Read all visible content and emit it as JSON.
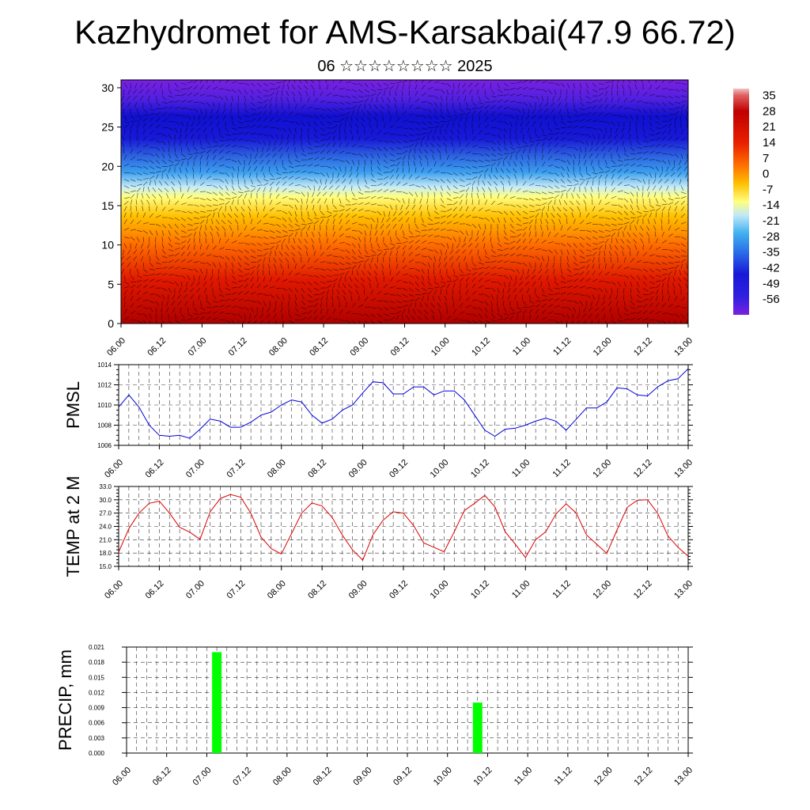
{
  "title": "Kazhydromet for AMS-Karsakbai(47.9 66.72)",
  "subtitle": "06 ☆☆☆☆☆☆☆☆ 2025",
  "chart_data": [
    {
      "type": "heatmap",
      "name": "cross-section",
      "y_ticks": [
        "0",
        "5",
        "10",
        "15",
        "20",
        "25",
        "30"
      ],
      "ylim": [
        0,
        31
      ],
      "x_ticks": [
        "06.00",
        "06.12",
        "07.00",
        "07.12",
        "08.00",
        "08.12",
        "09.00",
        "09.12",
        "10.00",
        "10.12",
        "11.00",
        "11.12",
        "12.00",
        "12.12",
        "13.00"
      ],
      "colorbar_labels": [
        "35",
        "28",
        "21",
        "14",
        "7",
        "0",
        "-7",
        "-14",
        "-21",
        "-28",
        "-35",
        "-42",
        "-49",
        "-56"
      ],
      "colorbar_range": [
        -63,
        38
      ],
      "colors": {
        "hot": "#c80000",
        "warm": "#ff8c00",
        "yellow": "#ffff80",
        "cold_blue": "#3ca0f0",
        "deep_blue": "#1010d0",
        "violet": "#6a20e0"
      }
    },
    {
      "type": "line",
      "name": "pmsl",
      "ylabel": "PMSL",
      "ylim": [
        1006,
        1014
      ],
      "y_ticks": [
        "1006",
        "1008",
        "1010",
        "1012",
        "1014"
      ],
      "x_ticks": [
        "06.00",
        "06.12",
        "07.00",
        "07.12",
        "08.00",
        "08.12",
        "09.00",
        "09.12",
        "10.00",
        "10.12",
        "11.00",
        "11.12",
        "12.00",
        "12.12",
        "13.00"
      ],
      "x_start": 6.0,
      "x_step_days": 0.125,
      "color": "#0000dd",
      "values": [
        1009.8,
        1011.0,
        1009.8,
        1008.0,
        1007.0,
        1006.9,
        1007.0,
        1006.7,
        1007.6,
        1008.6,
        1008.4,
        1007.8,
        1007.8,
        1008.3,
        1009.0,
        1009.3,
        1010.0,
        1010.5,
        1010.3,
        1009.0,
        1008.2,
        1008.6,
        1009.5,
        1010.0,
        1011.2,
        1012.3,
        1012.2,
        1011.1,
        1011.1,
        1011.8,
        1011.8,
        1011.0,
        1011.4,
        1011.4,
        1010.5,
        1009.0,
        1007.5,
        1006.9,
        1007.6,
        1007.7,
        1008.0,
        1008.4,
        1008.7,
        1008.4,
        1007.5,
        1008.6,
        1009.7,
        1009.7,
        1010.3,
        1011.7,
        1011.6,
        1011.0,
        1010.9,
        1011.8,
        1012.4,
        1012.6,
        1013.6
      ]
    },
    {
      "type": "line",
      "name": "temp",
      "ylabel": "TEMP at 2 M",
      "ylim": [
        15,
        33
      ],
      "y_ticks": [
        "15.0",
        "18.0",
        "21.0",
        "24.0",
        "27.0",
        "30.0",
        "33.0"
      ],
      "x_ticks": [
        "06.00",
        "06.12",
        "07.00",
        "07.12",
        "08.00",
        "08.12",
        "09.00",
        "09.12",
        "10.00",
        "10.12",
        "11.00",
        "11.12",
        "12.00",
        "12.12",
        "13.00"
      ],
      "x_start": 6.0,
      "x_step_days": 0.125,
      "color": "#dd0000",
      "values": [
        18.2,
        23.5,
        27.0,
        29.2,
        29.7,
        27.0,
        23.8,
        22.7,
        21.1,
        27.3,
        30.3,
        31.2,
        30.6,
        27.0,
        21.6,
        19.0,
        17.8,
        22.4,
        27.0,
        29.3,
        28.6,
        26.0,
        22.0,
        18.7,
        16.4,
        22.1,
        25.4,
        27.3,
        27.0,
        24.2,
        20.3,
        19.3,
        18.3,
        22.8,
        27.6,
        29.2,
        31.0,
        28.4,
        22.8,
        20.0,
        17.0,
        21.0,
        22.8,
        26.8,
        29.1,
        27.0,
        22.1,
        20.0,
        17.9,
        23.2,
        28.3,
        29.9,
        30.0,
        27.0,
        21.9,
        19.3,
        17.3
      ]
    },
    {
      "type": "bar",
      "name": "precip",
      "ylabel": "PRECIP, mm",
      "ylim": [
        0,
        0.021
      ],
      "y_ticks": [
        "0.000",
        "0.003",
        "0.006",
        "0.009",
        "0.012",
        "0.015",
        "0.018",
        "0.021"
      ],
      "x_ticks": [
        "06.00",
        "06.12",
        "07.00",
        "07.12",
        "08.00",
        "08.12",
        "09.00",
        "09.12",
        "10.00",
        "10.12",
        "11.00",
        "11.12",
        "12.00",
        "12.12",
        "13.00"
      ],
      "color": "#00ff00",
      "bars": [
        {
          "x": 7.125,
          "value": 0.02
        },
        {
          "x": 10.375,
          "value": 0.01
        }
      ]
    }
  ]
}
